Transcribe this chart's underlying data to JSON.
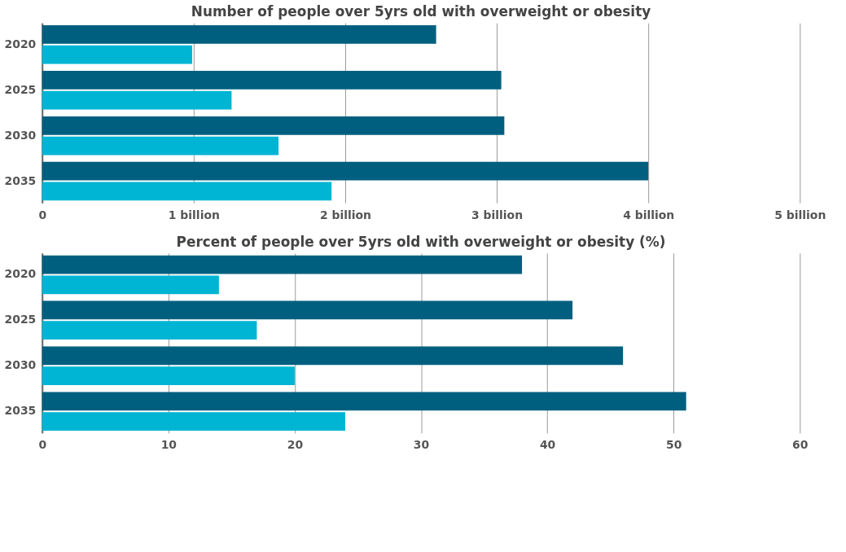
{
  "chart_data": [
    {
      "type": "bar",
      "orientation": "horizontal",
      "title": "Number of people over 5yrs old with overweight or obesity",
      "categories": [
        "2020",
        "2025",
        "2030",
        "2035"
      ],
      "series": [
        {
          "color": "#005f7f",
          "values": [
            2.6,
            3.03,
            3.05,
            4.0
          ]
        },
        {
          "color": "#00b4d3",
          "values": [
            0.99,
            1.25,
            1.56,
            1.91
          ]
        }
      ],
      "xlim": [
        0,
        5
      ],
      "xticks": [
        0,
        {
          "value": 1,
          "label": "1 billion"
        },
        {
          "value": 2,
          "label": "2 billion"
        },
        {
          "value": 3,
          "label": "3 billion"
        },
        {
          "value": 4,
          "label": "4 billion"
        },
        {
          "value": 5,
          "label": "5 billion"
        }
      ],
      "grid": "x",
      "legend": false
    },
    {
      "type": "bar",
      "orientation": "horizontal",
      "title": "Percent of people over 5yrs old with overweight or obesity (%)",
      "categories": [
        "2020",
        "2025",
        "2030",
        "2035"
      ],
      "series": [
        {
          "color": "#005f7f",
          "values": [
            38,
            42,
            46,
            51
          ]
        },
        {
          "color": "#00b4d3",
          "values": [
            14,
            17,
            20,
            24
          ]
        }
      ],
      "xlim": [
        0,
        60
      ],
      "xticks": [
        0,
        10,
        20,
        30,
        40,
        50,
        60
      ],
      "grid": "x",
      "legend": false
    }
  ]
}
